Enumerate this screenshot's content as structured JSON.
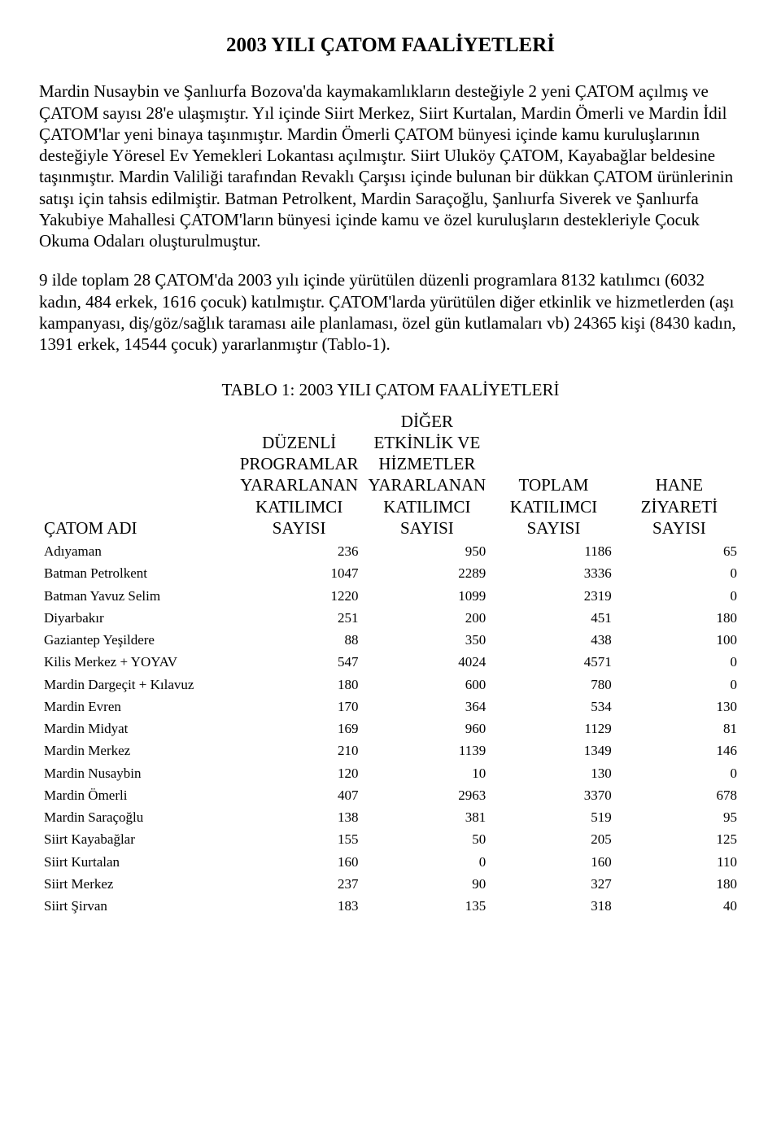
{
  "title": "2003 YILI ÇATOM FAALİYETLERİ",
  "para1": "Mardin Nusaybin ve Şanlıurfa Bozova'da kaymakamlıkların desteğiyle 2 yeni ÇATOM açılmış ve ÇATOM sayısı 28'e ulaşmıştır. Yıl içinde Siirt Merkez, Siirt Kurtalan, Mardin Ömerli ve Mardin İdil ÇATOM'lar yeni binaya taşınmıştır. Mardin Ömerli ÇATOM bünyesi içinde kamu kuruluşlarının desteğiyle Yöresel Ev Yemekleri Lokantası açılmıştır. Siirt Uluköy ÇATOM, Kayabağlar beldesine taşınmıştır. Mardin Valiliği tarafından Revaklı Çarşısı içinde bulunan bir dükkan ÇATOM ürünlerinin satışı için tahsis edilmiştir. Batman Petrolkent, Mardin Saraçoğlu, Şanlıurfa Siverek ve Şanlıurfa Yakubiye Mahallesi ÇATOM'ların bünyesi içinde kamu ve özel kuruluşların destekleriyle Çocuk Okuma Odaları oluşturulmuştur.",
  "para2": "9 ilde toplam 28 ÇATOM'da 2003 yılı içinde yürütülen düzenli programlara 8132 katılımcı (6032 kadın, 484 erkek, 1616 çocuk) katılmıştır. ÇATOM'larda yürütülen diğer etkinlik ve hizmetlerden (aşı kampanyası, diş/göz/sağlık taraması aile planlaması, özel gün kutlamaları vb) 24365 kişi (8430 kadın, 1391 erkek, 14544 çocuk) yararlanmıştır (Tablo-1).",
  "table_title": "TABLO 1: 2003 YILI ÇATOM FAALİYETLERİ",
  "headers": {
    "col0": "ÇATOM ADI",
    "col1": "DÜZENLİ PROGRAMLAR YARARLANAN KATILIMCI SAYISI",
    "col2": "DİĞER ETKİNLİK VE HİZMETLER YARARLANAN KATILIMCI SAYISI",
    "col3": "TOPLAM KATILIMCI SAYISI",
    "col4": "HANE ZİYARETİ SAYISI"
  },
  "rows": [
    {
      "name": "Adıyaman",
      "c1": "236",
      "c2": "950",
      "c3": "1186",
      "c4": "65"
    },
    {
      "name": "Batman Petrolkent",
      "c1": "1047",
      "c2": "2289",
      "c3": "3336",
      "c4": "0"
    },
    {
      "name": "Batman Yavuz Selim",
      "c1": "1220",
      "c2": "1099",
      "c3": "2319",
      "c4": "0"
    },
    {
      "name": "Diyarbakır",
      "c1": "251",
      "c2": "200",
      "c3": "451",
      "c4": "180"
    },
    {
      "name": "Gaziantep Yeşildere",
      "c1": "88",
      "c2": "350",
      "c3": "438",
      "c4": "100"
    },
    {
      "name": "Kilis Merkez + YOYAV",
      "c1": "547",
      "c2": "4024",
      "c3": "4571",
      "c4": "0"
    },
    {
      "name": "Mardin Dargeçit + Kılavuz",
      "c1": "180",
      "c2": "600",
      "c3": "780",
      "c4": "0"
    },
    {
      "name": "Mardin Evren",
      "c1": "170",
      "c2": "364",
      "c3": "534",
      "c4": "130"
    },
    {
      "name": "Mardin Midyat",
      "c1": "169",
      "c2": "960",
      "c3": "1129",
      "c4": "81"
    },
    {
      "name": "Mardin Merkez",
      "c1": "210",
      "c2": "1139",
      "c3": "1349",
      "c4": "146"
    },
    {
      "name": "Mardin Nusaybin",
      "c1": "120",
      "c2": "10",
      "c3": "130",
      "c4": "0"
    },
    {
      "name": "Mardin Ömerli",
      "c1": "407",
      "c2": "2963",
      "c3": "3370",
      "c4": "678"
    },
    {
      "name": "Mardin Saraçoğlu",
      "c1": "138",
      "c2": "381",
      "c3": "519",
      "c4": "95"
    },
    {
      "name": "Siirt Kayabağlar",
      "c1": "155",
      "c2": "50",
      "c3": "205",
      "c4": "125"
    },
    {
      "name": "Siirt Kurtalan",
      "c1": "160",
      "c2": "0",
      "c3": "160",
      "c4": "110"
    },
    {
      "name": "Siirt Merkez",
      "c1": "237",
      "c2": "90",
      "c3": "327",
      "c4": "180"
    },
    {
      "name": "Siirt Şirvan",
      "c1": "183",
      "c2": "135",
      "c3": "318",
      "c4": "40"
    }
  ]
}
